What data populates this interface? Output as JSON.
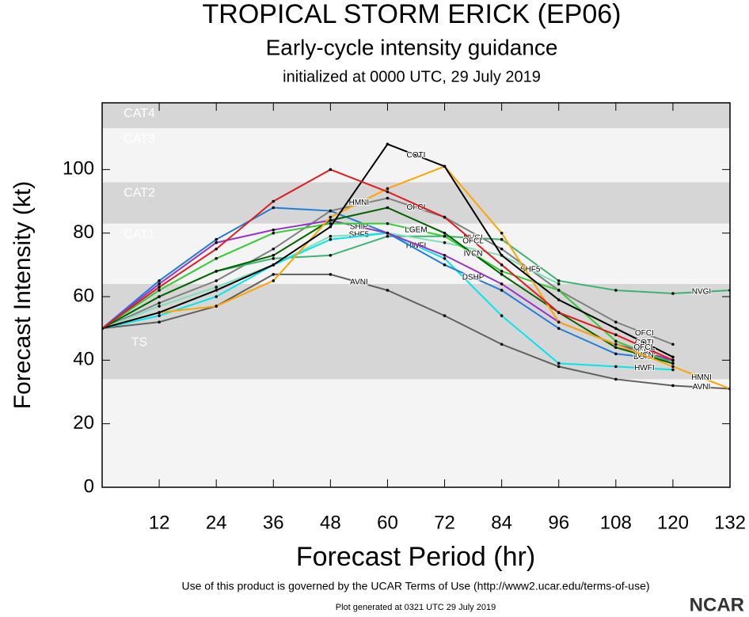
{
  "chart_data": {
    "type": "line",
    "title": "TROPICAL STORM ERICK (EP06)",
    "subtitle": "Early-cycle intensity guidance",
    "initialized": "initialized at 0000 UTC, 29 July 2019",
    "x_label": "Forecast Period (hr)",
    "y_label": "Forecast Intensity (kt)",
    "footer": "Use of this product is governed by the UCAR Terms of Use (http://www2.ucar.edu/terms-of-use)",
    "generated": "Plot generated at 0321 UTC   29 July 2019",
    "logo": "NCAR",
    "xlim": [
      0,
      132
    ],
    "ylim": [
      0,
      121
    ],
    "xticks": [
      12,
      24,
      36,
      48,
      60,
      72,
      84,
      96,
      108,
      120,
      132
    ],
    "yticks": [
      0,
      20,
      40,
      60,
      80,
      100
    ],
    "bands": [
      {
        "name": "TS",
        "from": 34,
        "to": 64,
        "color": "#d6d6d6"
      },
      {
        "name": "CAT1",
        "from": 64,
        "to": 83,
        "color": "#f4f4f4"
      },
      {
        "name": "CAT2",
        "from": 83,
        "to": 96,
        "color": "#d6d6d6"
      },
      {
        "name": "CAT3",
        "from": 96,
        "to": 113,
        "color": "#f4f4f4"
      },
      {
        "name": "CAT4",
        "from": 113,
        "to": 137,
        "color": "#d6d6d6"
      }
    ],
    "x": [
      0,
      12,
      24,
      36,
      48,
      60,
      72,
      84,
      96,
      108,
      120,
      132
    ],
    "series": [
      {
        "name": "AVNI",
        "color": "#606060",
        "values": [
          50,
          52,
          57,
          67,
          67,
          62,
          54,
          45,
          38,
          34,
          32,
          31
        ]
      },
      {
        "name": "OFCI",
        "color": "#808080",
        "values": [
          50,
          58,
          65,
          75,
          87,
          91,
          85,
          75,
          62,
          52,
          45,
          null
        ]
      },
      {
        "name": "NVGI",
        "color": "#3cb371",
        "values": [
          50,
          60,
          68,
          72,
          73,
          79,
          79,
          78,
          65,
          62,
          61,
          62
        ]
      },
      {
        "name": "SHF5",
        "color": "#7ee0b8",
        "values": [
          50,
          57,
          63,
          70,
          79,
          80,
          77,
          73,
          64,
          null,
          null,
          null
        ]
      },
      {
        "name": "HWFI",
        "color": "#00e5ee",
        "values": [
          50,
          54,
          60,
          70,
          78,
          80,
          72,
          54,
          39,
          38,
          37,
          null
        ]
      },
      {
        "name": "DSHP",
        "color": "#1e7fd9",
        "values": [
          50,
          65,
          78,
          88,
          87,
          80,
          70,
          62,
          50,
          42,
          40,
          null
        ]
      },
      {
        "name": "SHIP",
        "color": "#9933cc",
        "values": [
          50,
          64,
          77,
          81,
          84,
          80,
          73,
          64,
          52,
          45,
          40,
          null
        ]
      },
      {
        "name": "LGEM",
        "color": "#33cc33",
        "values": [
          50,
          62,
          72,
          80,
          83,
          83,
          79,
          68,
          62,
          46,
          39,
          null
        ]
      },
      {
        "name": "IVCN",
        "color": "#006400",
        "values": [
          50,
          60,
          68,
          73,
          84,
          88,
          80,
          67,
          55,
          44,
          39,
          null
        ]
      },
      {
        "name": "HMNI",
        "color": "#ffa500",
        "values": [
          50,
          55,
          57,
          65,
          85,
          94,
          101,
          80,
          52,
          45,
          38,
          31
        ]
      },
      {
        "name": "COTI",
        "color": "#000000",
        "values": [
          50,
          55,
          62,
          70,
          82,
          108,
          101,
          73,
          59,
          50,
          41,
          null
        ]
      },
      {
        "name": "OFCL",
        "color": "#e31a1c",
        "values": [
          50,
          63,
          75,
          90,
          100,
          93,
          85,
          70,
          55,
          48,
          40,
          null
        ]
      }
    ]
  }
}
